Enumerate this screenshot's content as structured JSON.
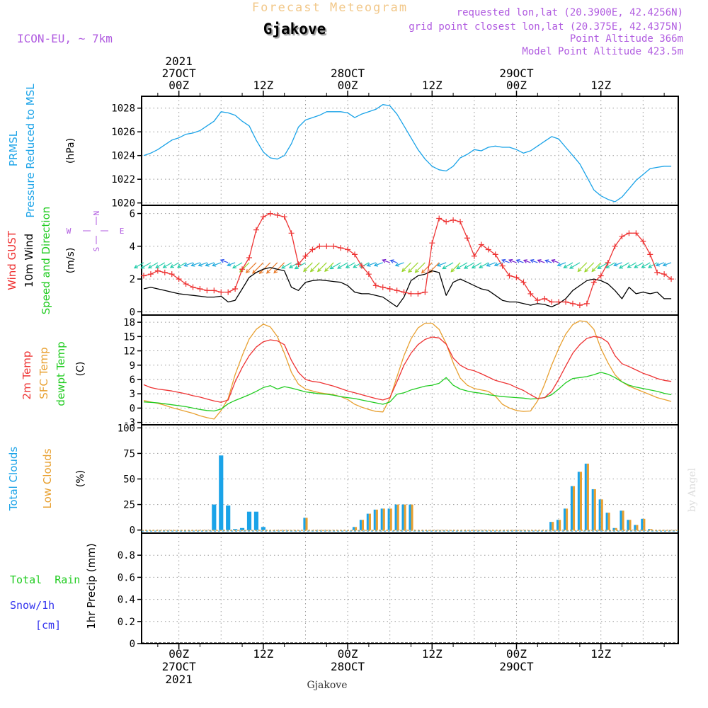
{
  "header": {
    "app_title": "Forecast Meteogram",
    "location": "Gjakove",
    "model": "ICON-EU, ~ 7km",
    "requested": "requested lon,lat (20.3900E, 42.4256N)",
    "grid_point": "grid point closest lon,lat (20.375E, 42.4375N)",
    "point_alt": "Point Altitude 366m",
    "model_alt": "Model Point Altitude 423.5m",
    "footer_location": "Gjakove",
    "credit": "by Angel"
  },
  "time_axis": {
    "top": [
      {
        "t": 0,
        "lines": [
          "2021",
          "27OCT",
          "00Z"
        ]
      },
      {
        "t": 12,
        "lines": [
          "12Z"
        ]
      },
      {
        "t": 24,
        "lines": [
          "28OCT",
          "00Z"
        ]
      },
      {
        "t": 36,
        "lines": [
          "12Z"
        ]
      },
      {
        "t": 48,
        "lines": [
          "29OCT",
          "00Z"
        ]
      },
      {
        "t": 60,
        "lines": [
          "12Z"
        ]
      }
    ],
    "bottom": [
      {
        "t": 0,
        "lines": [
          "00Z",
          "27OCT",
          "2021"
        ]
      },
      {
        "t": 12,
        "lines": [
          "12Z"
        ]
      },
      {
        "t": 24,
        "lines": [
          "00Z",
          "28OCT"
        ]
      },
      {
        "t": 36,
        "lines": [
          "12Z"
        ]
      },
      {
        "t": 48,
        "lines": [
          "00Z",
          "29OCT"
        ]
      },
      {
        "t": 60,
        "lines": [
          "12Z"
        ]
      }
    ],
    "t_range_hours": [
      -5.3,
      71
    ]
  },
  "panel_labels": {
    "pressure": {
      "line1": "PRMSL",
      "line2": "Pressure Reduced to MSL",
      "unit": "(hPa)"
    },
    "wind": {
      "gust": "Wind GUST",
      "wind10": "10m Wind",
      "speed_dir": "Speed and Direction",
      "unit": "(m/s)",
      "compass": {
        "n": "N",
        "s": "S",
        "e": "E",
        "w": "W"
      }
    },
    "temp": {
      "t2m": "2m Temp",
      "sfc": "SFC Temp",
      "dewpt": "dewpt Temp",
      "unit": "(C)"
    },
    "clouds": {
      "total": "Total Clouds",
      "low": "Low Clouds",
      "unit": "(%)"
    },
    "precip": {
      "total_rain": "Total  Rain",
      "snow": "Snow/1h",
      "snow_unit": "[cm]",
      "axis": "1hr Precip (mm)"
    }
  },
  "colors": {
    "pressure": "#1aa3e8",
    "gust": "#ee3333",
    "wind10": "#000000",
    "t2m": "#ee3333",
    "sfc": "#e8a030",
    "dewpt": "#22cc22",
    "total_clouds": "#1aa3e8",
    "low_clouds": "#e8a030",
    "rain": "#22cc22",
    "snow": "#3333ee",
    "label_purple": "#b05be0",
    "title_faded": "#f2c88a"
  },
  "chart_data": [
    {
      "type": "line",
      "title": "PRMSL Pressure Reduced to MSL",
      "ylabel": "(hPa)",
      "ylim": [
        1019.8,
        1029.0
      ],
      "yticks": [
        1020,
        1022,
        1024,
        1026,
        1028
      ],
      "x_hours": [
        -5,
        -4,
        -3,
        -2,
        -1,
        0,
        1,
        2,
        3,
        4,
        5,
        6,
        7,
        8,
        9,
        10,
        11,
        12,
        13,
        14,
        15,
        16,
        17,
        18,
        19,
        20,
        21,
        22,
        23,
        24,
        25,
        26,
        27,
        28,
        29,
        30,
        31,
        32,
        33,
        34,
        35,
        36,
        37,
        38,
        39,
        40,
        41,
        42,
        43,
        44,
        45,
        46,
        47,
        48,
        49,
        50,
        51,
        52,
        53,
        54,
        55,
        56,
        57,
        58,
        59,
        60,
        61,
        62,
        63,
        64,
        65,
        66,
        67,
        68,
        69,
        70
      ],
      "series": [
        {
          "name": "PRMSL",
          "values": [
            1024.0,
            1024.2,
            1024.5,
            1024.9,
            1025.3,
            1025.5,
            1025.8,
            1025.9,
            1026.1,
            1026.5,
            1026.9,
            1027.7,
            1027.6,
            1027.4,
            1026.9,
            1026.5,
            1025.3,
            1024.3,
            1023.8,
            1023.7,
            1024.0,
            1025.0,
            1026.4,
            1027.0,
            1027.2,
            1027.4,
            1027.7,
            1027.7,
            1027.7,
            1027.6,
            1027.2,
            1027.5,
            1027.7,
            1027.9,
            1028.3,
            1028.2,
            1027.5,
            1026.5,
            1025.5,
            1024.5,
            1023.7,
            1023.1,
            1022.8,
            1022.7,
            1023.1,
            1023.8,
            1024.1,
            1024.5,
            1024.4,
            1024.7,
            1024.8,
            1024.7,
            1024.7,
            1024.5,
            1024.2,
            1024.4,
            1024.8,
            1025.2,
            1025.6,
            1025.4,
            1024.7,
            1024.0,
            1023.3,
            1022.2,
            1021.1,
            1020.6,
            1020.3,
            1020.1,
            1020.5,
            1021.2,
            1021.9,
            1022.4,
            1022.9,
            1023.0,
            1023.1,
            1023.1
          ]
        }
      ]
    },
    {
      "type": "line",
      "title": "Wind GUST / 10m Wind Speed and Direction",
      "ylabel": "(m/s)",
      "ylim": [
        -0.2,
        6.5
      ],
      "yticks": [
        0,
        2,
        4,
        6
      ],
      "x_hours": [
        -5,
        -4,
        -3,
        -2,
        -1,
        0,
        1,
        2,
        3,
        4,
        5,
        6,
        7,
        8,
        9,
        10,
        11,
        12,
        13,
        14,
        15,
        16,
        17,
        18,
        19,
        20,
        21,
        22,
        23,
        24,
        25,
        26,
        27,
        28,
        29,
        30,
        31,
        32,
        33,
        34,
        35,
        36,
        37,
        38,
        39,
        40,
        41,
        42,
        43,
        44,
        45,
        46,
        47,
        48,
        49,
        50,
        51,
        52,
        53,
        54,
        55,
        56,
        57,
        58,
        59,
        60,
        61,
        62,
        63,
        64,
        65,
        66,
        67,
        68,
        69,
        70
      ],
      "series": [
        {
          "name": "Wind GUST",
          "values": [
            2.2,
            2.3,
            2.5,
            2.4,
            2.3,
            2.0,
            1.7,
            1.5,
            1.4,
            1.3,
            1.3,
            1.2,
            1.2,
            1.4,
            2.6,
            3.3,
            5.0,
            5.8,
            6.0,
            5.9,
            5.8,
            4.8,
            2.9,
            3.4,
            3.8,
            4.0,
            4.0,
            4.0,
            3.9,
            3.8,
            3.5,
            2.8,
            2.3,
            1.6,
            1.5,
            1.4,
            1.3,
            1.2,
            1.1,
            1.1,
            1.2,
            4.2,
            5.7,
            5.5,
            5.6,
            5.5,
            4.5,
            3.4,
            4.1,
            3.8,
            3.5,
            2.8,
            2.2,
            2.1,
            1.8,
            1.1,
            0.7,
            0.8,
            0.6,
            0.6,
            0.6,
            0.5,
            0.4,
            0.5,
            1.8,
            2.2,
            3.0,
            4.0,
            4.6,
            4.8,
            4.8,
            4.3,
            3.5,
            2.4,
            2.3,
            2.0
          ]
        },
        {
          "name": "10m Wind",
          "values": [
            1.4,
            1.5,
            1.4,
            1.3,
            1.2,
            1.1,
            1.05,
            1.0,
            0.95,
            0.9,
            0.9,
            0.95,
            0.6,
            0.7,
            1.4,
            2.1,
            2.4,
            2.6,
            2.7,
            2.6,
            2.5,
            1.5,
            1.3,
            1.8,
            1.9,
            1.95,
            1.9,
            1.85,
            1.8,
            1.6,
            1.2,
            1.1,
            1.1,
            1.0,
            0.9,
            0.6,
            0.3,
            0.9,
            1.9,
            2.2,
            2.3,
            2.5,
            2.4,
            1.0,
            1.8,
            2.0,
            1.8,
            1.6,
            1.4,
            1.3,
            1.0,
            0.7,
            0.6,
            0.6,
            0.5,
            0.4,
            0.5,
            0.45,
            0.3,
            0.5,
            0.8,
            1.3,
            1.6,
            1.9,
            2.0,
            1.9,
            1.7,
            1.3,
            0.8,
            1.5,
            1.1,
            1.2,
            1.1,
            1.2,
            0.8,
            0.8
          ]
        }
      ]
    },
    {
      "type": "line",
      "title": "2m Temp / SFC Temp / dewpt Temp",
      "ylabel": "(C)",
      "ylim": [
        -3.5,
        19.5
      ],
      "yticks": [
        -3,
        0,
        3,
        6,
        9,
        12,
        15,
        18
      ],
      "x_hours": [
        -5,
        -4,
        -3,
        -2,
        -1,
        0,
        1,
        2,
        3,
        4,
        5,
        6,
        7,
        8,
        9,
        10,
        11,
        12,
        13,
        14,
        15,
        16,
        17,
        18,
        19,
        20,
        21,
        22,
        23,
        24,
        25,
        26,
        27,
        28,
        29,
        30,
        31,
        32,
        33,
        34,
        35,
        36,
        37,
        38,
        39,
        40,
        41,
        42,
        43,
        44,
        45,
        46,
        47,
        48,
        49,
        50,
        51,
        52,
        53,
        54,
        55,
        56,
        57,
        58,
        59,
        60,
        61,
        62,
        63,
        64,
        65,
        66,
        67,
        68,
        69,
        70
      ],
      "series": [
        {
          "name": "2m Temp",
          "values": [
            4.9,
            4.3,
            4.0,
            3.8,
            3.6,
            3.3,
            3.0,
            2.6,
            2.3,
            1.9,
            1.5,
            1.2,
            1.7,
            5.5,
            8.5,
            11.0,
            12.8,
            13.9,
            14.3,
            14.1,
            13.3,
            10.0,
            7.5,
            6.0,
            5.6,
            5.4,
            5.0,
            4.6,
            4.1,
            3.6,
            3.2,
            2.8,
            2.4,
            2.0,
            1.7,
            2.2,
            5.5,
            9.0,
            11.5,
            13.3,
            14.4,
            14.9,
            14.7,
            13.4,
            10.5,
            9.0,
            8.2,
            7.8,
            7.2,
            6.5,
            5.8,
            5.4,
            5.0,
            4.3,
            3.7,
            2.8,
            2.0,
            2.2,
            3.5,
            6.0,
            8.8,
            11.5,
            13.3,
            14.6,
            15.0,
            14.8,
            13.8,
            11.0,
            9.3,
            8.7,
            8.0,
            7.3,
            6.8,
            6.2,
            5.8,
            5.6
          ]
        },
        {
          "name": "SFC Temp",
          "values": [
            1.6,
            1.3,
            1.0,
            0.6,
            0.1,
            -0.3,
            -0.7,
            -1.1,
            -1.6,
            -2.0,
            -2.3,
            -0.5,
            2.0,
            7.0,
            11.0,
            14.5,
            16.5,
            17.6,
            17.0,
            15.0,
            11.5,
            7.5,
            5.0,
            4.0,
            3.6,
            3.2,
            3.0,
            2.8,
            2.4,
            1.8,
            0.8,
            0.2,
            -0.3,
            -0.7,
            -0.8,
            2.0,
            6.5,
            11.0,
            14.5,
            16.8,
            17.8,
            17.8,
            16.5,
            13.5,
            9.5,
            6.3,
            4.8,
            4.1,
            3.8,
            3.5,
            2.5,
            0.8,
            0.0,
            -0.5,
            -0.7,
            -0.6,
            1.5,
            5.0,
            9.0,
            12.5,
            15.5,
            17.5,
            18.3,
            18.1,
            16.5,
            12.5,
            9.5,
            7.0,
            5.5,
            4.6,
            4.0,
            3.4,
            2.8,
            2.2,
            1.8,
            1.4
          ]
        },
        {
          "name": "dewpt Temp",
          "values": [
            1.3,
            1.2,
            1.1,
            0.9,
            0.7,
            0.5,
            0.3,
            0.0,
            -0.3,
            -0.5,
            -0.6,
            -0.2,
            0.9,
            1.6,
            2.2,
            2.8,
            3.5,
            4.3,
            4.7,
            4.0,
            4.5,
            4.2,
            3.8,
            3.4,
            3.2,
            3.0,
            2.9,
            2.7,
            2.4,
            2.2,
            2.0,
            1.7,
            1.4,
            1.1,
            0.8,
            1.3,
            2.9,
            3.2,
            3.8,
            4.2,
            4.6,
            4.8,
            5.2,
            6.4,
            4.8,
            4.0,
            3.6,
            3.3,
            3.1,
            2.8,
            2.6,
            2.4,
            2.3,
            2.2,
            2.1,
            1.9,
            2.0,
            2.2,
            2.8,
            4.0,
            5.3,
            6.2,
            6.4,
            6.6,
            7.0,
            7.5,
            7.1,
            6.4,
            5.5,
            4.8,
            4.4,
            4.1,
            3.8,
            3.5,
            3.1,
            2.8
          ]
        }
      ]
    },
    {
      "type": "bar",
      "title": "Total Clouds / Low Clouds",
      "ylabel": "(%)",
      "ylim": [
        -3,
        103
      ],
      "yticks": [
        0,
        25,
        50,
        75,
        100
      ],
      "x_hours": [
        -5,
        -4,
        -3,
        -2,
        -1,
        0,
        1,
        2,
        3,
        4,
        5,
        6,
        7,
        8,
        9,
        10,
        11,
        12,
        13,
        14,
        15,
        16,
        17,
        18,
        19,
        20,
        21,
        22,
        23,
        24,
        25,
        26,
        27,
        28,
        29,
        30,
        31,
        32,
        33,
        34,
        35,
        36,
        37,
        38,
        39,
        40,
        41,
        42,
        43,
        44,
        45,
        46,
        47,
        48,
        49,
        50,
        51,
        52,
        53,
        54,
        55,
        56,
        57,
        58,
        59,
        60,
        61,
        62,
        63,
        64,
        65,
        66,
        67,
        68,
        69,
        70
      ],
      "series": [
        {
          "name": "Total Clouds",
          "values": [
            0,
            0,
            0,
            0,
            0,
            0,
            0,
            0,
            0,
            0,
            25,
            73,
            24,
            1,
            2,
            18,
            18,
            3,
            0,
            0,
            0,
            0,
            0,
            0,
            0,
            0,
            0,
            0,
            0,
            0,
            0,
            0,
            0,
            0,
            0,
            0,
            0,
            0,
            0,
            0,
            0,
            0,
            0,
            0,
            0,
            0,
            0,
            0,
            0,
            0,
            0,
            0,
            0,
            0,
            0,
            0,
            0,
            0,
            0,
            0,
            0,
            0,
            0,
            0,
            0,
            0,
            0,
            0,
            0,
            0,
            0,
            0,
            0,
            0,
            0,
            0
          ]
        },
        {
          "name": "Total+Low Clouds",
          "values": [
            0,
            0,
            0,
            0,
            0,
            0,
            0,
            0,
            0,
            0,
            0,
            0,
            0,
            0,
            0,
            0,
            0,
            0,
            0,
            0,
            0,
            0,
            0,
            12,
            0,
            0,
            0,
            0,
            0,
            0,
            3,
            10,
            16,
            20,
            21,
            21,
            25,
            25,
            25,
            0,
            0,
            0,
            0,
            0,
            0,
            0,
            0,
            0,
            0,
            0,
            0,
            0,
            0,
            0,
            0,
            0,
            0,
            0,
            8,
            10,
            21,
            43,
            57,
            65,
            40,
            30,
            17,
            2,
            19,
            10,
            5,
            11,
            1,
            0,
            0,
            0
          ]
        }
      ]
    },
    {
      "type": "line",
      "title": "1hr Precip",
      "ylabel": "1hr Precip (mm)",
      "ylim": [
        0,
        1.0
      ],
      "yticks": [
        0,
        0.2,
        0.4,
        0.6,
        0.8
      ],
      "x_hours": [
        -5,
        70
      ],
      "series": [
        {
          "name": "Total Rain",
          "values": [
            0,
            0
          ]
        },
        {
          "name": "Snow/1h",
          "values": [
            0,
            0
          ]
        }
      ]
    }
  ]
}
